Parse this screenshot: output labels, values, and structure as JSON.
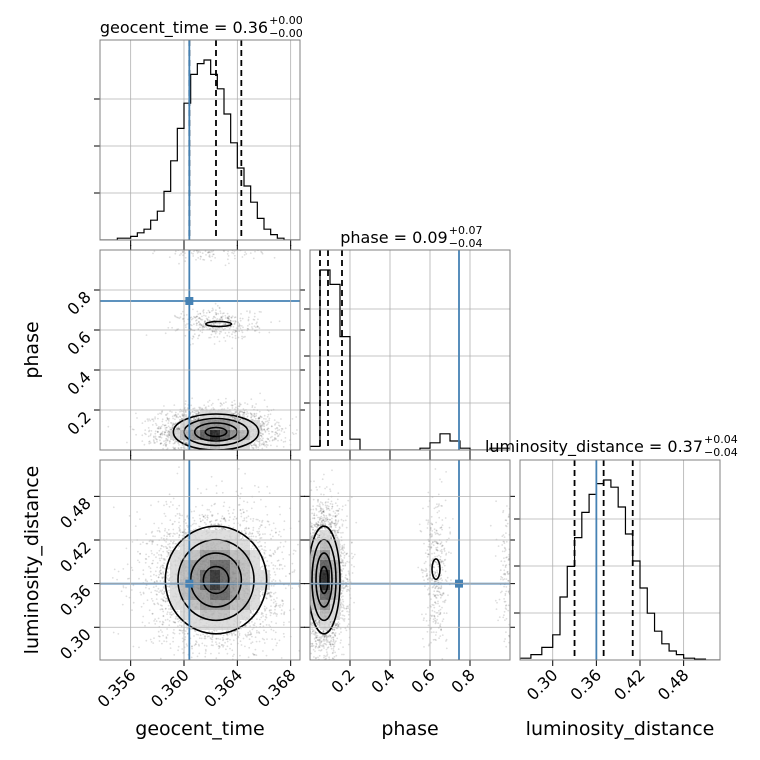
{
  "chart_data": {
    "type": "corner",
    "parameters": [
      "geocent_time",
      "phase",
      "luminosity_distance"
    ],
    "titles": {
      "geocent_time": {
        "name": "geocent_time",
        "median": "0.36",
        "plus": "+0.00",
        "minus": "−0.00"
      },
      "phase": {
        "name": "phase",
        "median": "0.09",
        "plus": "+0.07",
        "minus": "−0.04"
      },
      "luminosity_distance": {
        "name": "luminosity_distance",
        "median": "0.37",
        "plus": "+0.04",
        "minus": "−0.04"
      }
    },
    "axis_labels": {
      "x": [
        "geocent_time",
        "phase",
        "luminosity_distance"
      ],
      "y": [
        "phase",
        "luminosity_distance"
      ]
    },
    "ranges": {
      "geocent_time": [
        0.3537,
        0.3687
      ],
      "phase": [
        0.0,
        1.0
      ],
      "luminosity_distance": [
        0.255,
        0.53
      ]
    },
    "ticks": {
      "geocent_time": [
        "0.356",
        "0.360",
        "0.364",
        "0.368"
      ],
      "phase_x": [
        "0.2",
        "0.4",
        "0.6",
        "0.8"
      ],
      "phase_y": [
        "0.2",
        "0.4",
        "0.6",
        "0.8"
      ],
      "luminosity_distance_x": [
        "0.30",
        "0.36",
        "0.42",
        "0.48"
      ],
      "luminosity_distance_y": [
        "0.30",
        "0.36",
        "0.42",
        "0.48"
      ]
    },
    "injection": {
      "geocent_time": 0.3604,
      "phase": 0.745,
      "luminosity_distance": 0.36
    },
    "quantiles": {
      "geocent_time": [
        0.3604,
        0.3624,
        0.3643
      ],
      "phase": [
        0.05,
        0.09,
        0.16
      ],
      "luminosity_distance": [
        0.33,
        0.37,
        0.41
      ]
    },
    "histograms": {
      "geocent_time": {
        "edges": [
          0.3537,
          0.355,
          0.356,
          0.3565,
          0.357,
          0.3575,
          0.358,
          0.3585,
          0.359,
          0.3595,
          0.36,
          0.3605,
          0.361,
          0.3615,
          0.362,
          0.3625,
          0.363,
          0.3635,
          0.364,
          0.3645,
          0.365,
          0.3655,
          0.366,
          0.3665,
          0.367,
          0.3675,
          0.3687
        ],
        "counts": [
          0.0,
          0.01,
          0.02,
          0.04,
          0.06,
          0.11,
          0.16,
          0.27,
          0.44,
          0.62,
          0.76,
          0.92,
          0.98,
          1.0,
          0.92,
          0.84,
          0.7,
          0.54,
          0.4,
          0.3,
          0.21,
          0.12,
          0.06,
          0.03,
          0.01,
          0.0
        ]
      },
      "phase": {
        "edges": [
          0.0,
          0.05,
          0.1,
          0.15,
          0.2,
          0.25,
          0.3,
          0.35,
          0.4,
          0.45,
          0.5,
          0.55,
          0.6,
          0.65,
          0.7,
          0.75,
          0.8,
          0.85,
          0.9,
          0.95,
          1.0
        ],
        "counts": [
          0.02,
          1.0,
          0.92,
          0.63,
          0.06,
          0.0,
          0.0,
          0.0,
          0.0,
          0.0,
          0.0,
          0.01,
          0.04,
          0.09,
          0.05,
          0.01,
          0.0,
          0.0,
          0.01,
          0.01
        ]
      },
      "luminosity_distance": {
        "edges": [
          0.255,
          0.27,
          0.285,
          0.3,
          0.31,
          0.32,
          0.33,
          0.34,
          0.35,
          0.36,
          0.37,
          0.38,
          0.39,
          0.4,
          0.41,
          0.42,
          0.43,
          0.44,
          0.45,
          0.46,
          0.47,
          0.48,
          0.495,
          0.51,
          0.53
        ],
        "counts": [
          0.01,
          0.03,
          0.07,
          0.14,
          0.35,
          0.52,
          0.68,
          0.82,
          0.92,
          0.98,
          1.0,
          0.96,
          0.85,
          0.7,
          0.55,
          0.4,
          0.26,
          0.16,
          0.09,
          0.05,
          0.03,
          0.01,
          0.005,
          0.0
        ]
      }
    },
    "densities": {
      "phase_vs_geocent_time": {
        "modes": [
          {
            "x": 0.3624,
            "y": 0.09,
            "sx": 0.0016,
            "sy": 0.045,
            "w": 1.0
          },
          {
            "x": 0.3626,
            "y": 0.63,
            "sx": 0.0012,
            "sy": 0.03,
            "w": 0.09
          },
          {
            "x": 0.362,
            "y": 0.995,
            "sx": 0.0015,
            "sy": 0.02,
            "w": 0.03
          }
        ]
      },
      "luminosity_distance_vs_geocent_time": {
        "modes": [
          {
            "x": 0.3624,
            "y": 0.365,
            "sx": 0.0019,
            "sy": 0.037,
            "w": 1.0
          }
        ]
      },
      "luminosity_distance_vs_phase": {
        "modes": [
          {
            "x": 0.07,
            "y": 0.365,
            "sx": 0.04,
            "sy": 0.037,
            "w": 1.0
          },
          {
            "x": 0.63,
            "y": 0.38,
            "sx": 0.025,
            "sy": 0.04,
            "w": 0.09
          },
          {
            "x": 0.995,
            "y": 0.37,
            "sx": 0.02,
            "sy": 0.04,
            "w": 0.04
          }
        ]
      }
    }
  }
}
